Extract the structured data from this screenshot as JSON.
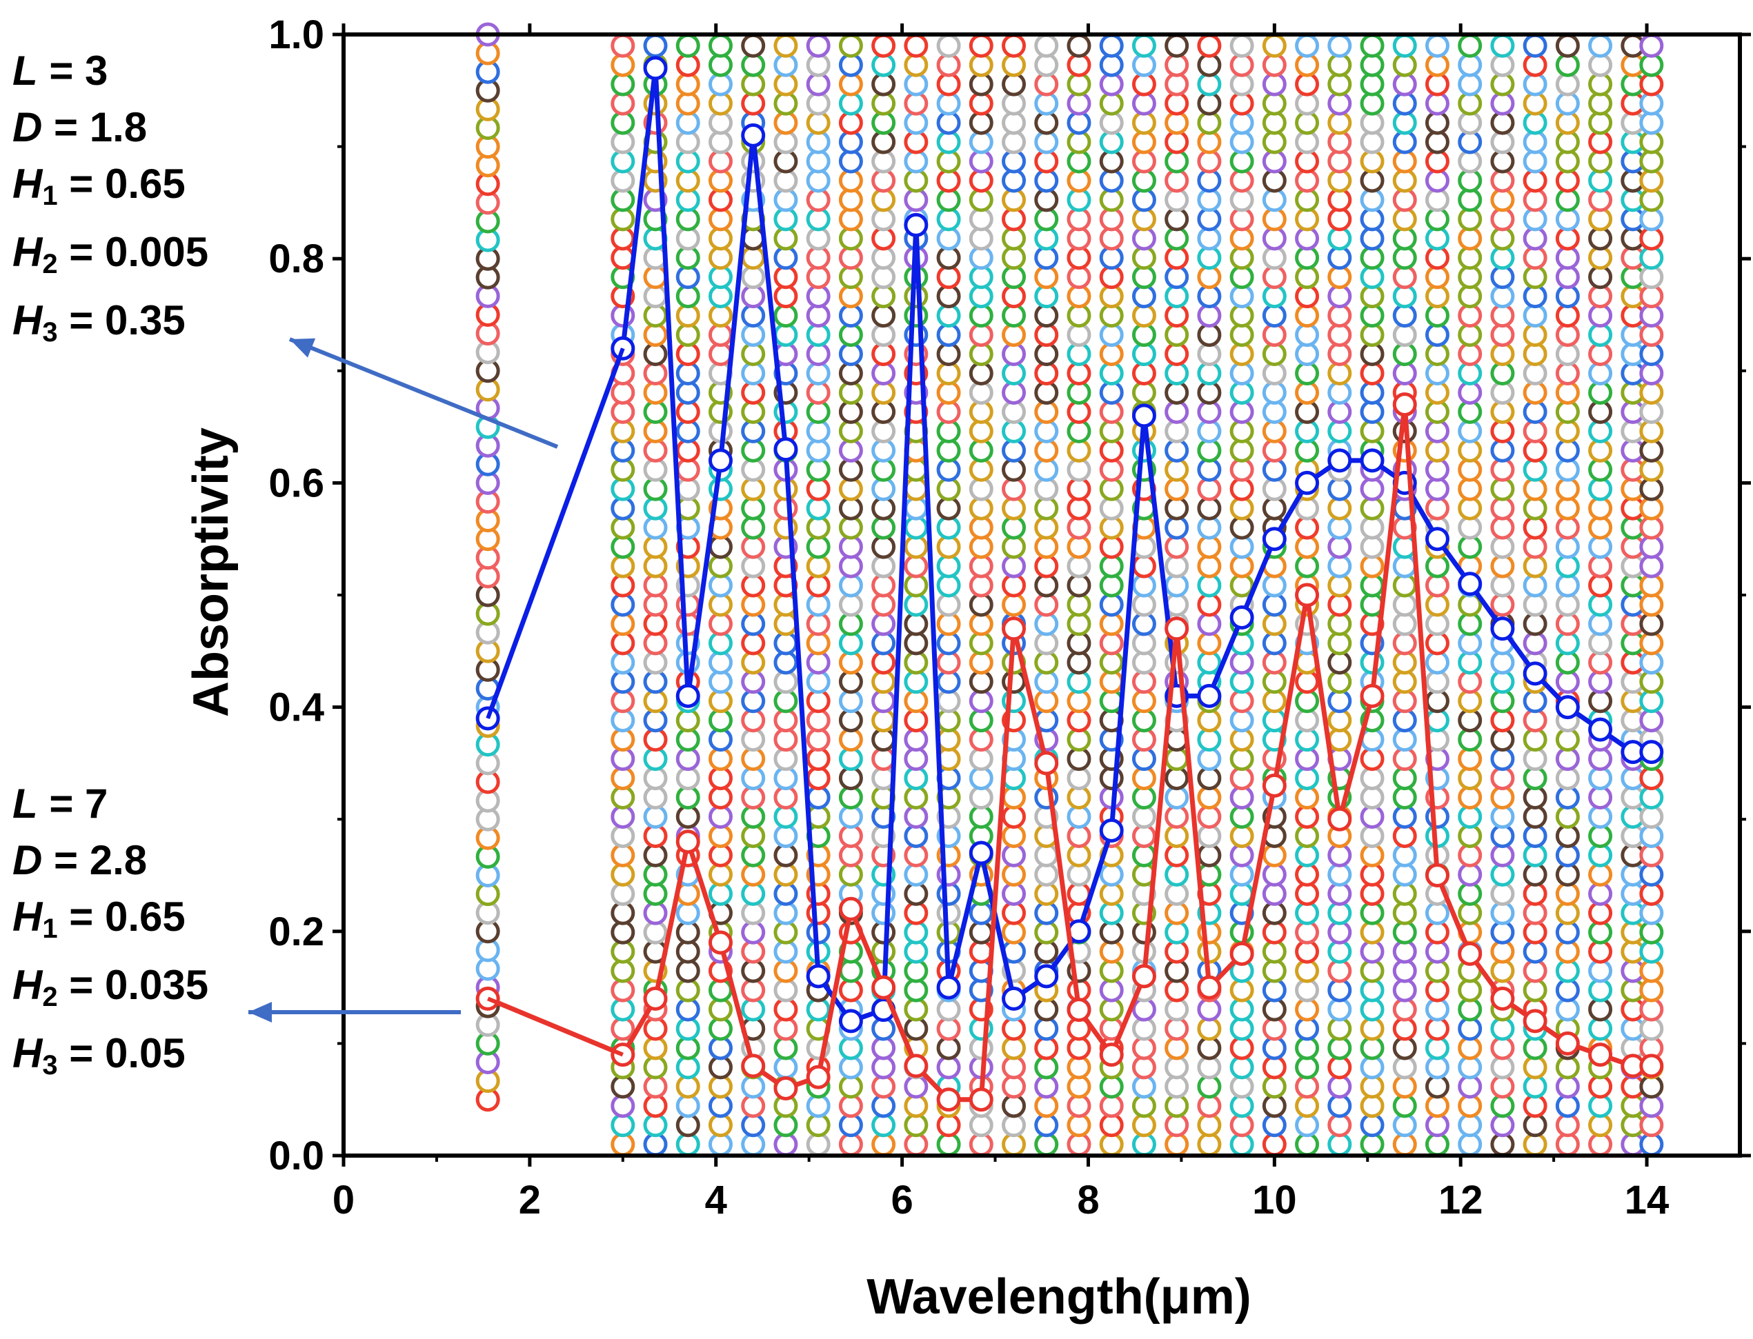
{
  "chart_data": {
    "type": "scatter",
    "title": "",
    "xlabel": "Wavelength(μm)",
    "ylabel": "Absorptivity",
    "xlim": [
      0,
      15
    ],
    "ylim": [
      0,
      1
    ],
    "xticks": [
      0,
      2,
      4,
      6,
      8,
      10,
      12,
      14
    ],
    "xtick_labels": [
      "0",
      "2",
      "4",
      "6",
      "8",
      "10",
      "12",
      "14"
    ],
    "yticks": [
      0.0,
      0.2,
      0.4,
      0.6,
      0.8,
      1.0
    ],
    "ytick_labels": [
      "0.0",
      "0.2",
      "0.4",
      "0.6",
      "0.8",
      "1.0"
    ],
    "background_scatter": {
      "description_x_columns": [
        1.55,
        3.0,
        3.35,
        3.7,
        4.05,
        4.4,
        4.75,
        5.1,
        5.45,
        5.8,
        6.15,
        6.5,
        6.85,
        7.2,
        7.55,
        7.9,
        8.25,
        8.6,
        8.95,
        9.3,
        9.65,
        10.0,
        10.35,
        10.7,
        11.05,
        11.4,
        11.75,
        12.1,
        12.45,
        12.8,
        13.15,
        13.5,
        13.85,
        14.05
      ],
      "first_column_y_range": [
        0.05,
        1.0
      ],
      "other_columns_y_range": [
        0.01,
        0.99
      ],
      "marker_colors": [
        "#ef3b2c",
        "#2f6fdf",
        "#30b040",
        "#9a64d8",
        "#f08a24",
        "#22c4c4",
        "#5a3f30",
        "#8aa820",
        "#b8b8b8",
        "#6ab4f0",
        "#f06060",
        "#d4a020"
      ]
    },
    "series": [
      {
        "name": "L = 3, D = 1.8, H1 = 0.65, H2 = 0.005, H3 = 0.35",
        "color": "#0a1ee6",
        "x": [
          1.55,
          3.0,
          3.35,
          3.7,
          4.05,
          4.4,
          4.75,
          5.1,
          5.45,
          5.8,
          6.15,
          6.5,
          6.85,
          7.2,
          7.55,
          7.9,
          8.25,
          8.6,
          8.95,
          9.3,
          9.65,
          10.0,
          10.35,
          10.7,
          11.05,
          11.4,
          11.75,
          12.1,
          12.45,
          12.8,
          13.15,
          13.5,
          13.85,
          14.05
        ],
        "y": [
          0.39,
          0.72,
          0.97,
          0.41,
          0.62,
          0.91,
          0.63,
          0.16,
          0.12,
          0.13,
          0.83,
          0.15,
          0.27,
          0.14,
          0.16,
          0.2,
          0.29,
          0.66,
          0.41,
          0.41,
          0.48,
          0.55,
          0.6,
          0.62,
          0.62,
          0.6,
          0.55,
          0.51,
          0.47,
          0.43,
          0.4,
          0.38,
          0.36,
          0.36
        ]
      },
      {
        "name": "L = 7, D = 2.8, H1 = 0.65, H2 = 0.035, H3 = 0.05",
        "color": "#e8342c",
        "x": [
          1.55,
          3.0,
          3.35,
          3.7,
          4.05,
          4.4,
          4.75,
          5.1,
          5.45,
          5.8,
          6.15,
          6.5,
          6.85,
          7.2,
          7.55,
          7.9,
          8.25,
          8.6,
          8.95,
          9.3,
          9.65,
          10.0,
          10.35,
          10.7,
          11.05,
          11.4,
          11.75,
          12.1,
          12.45,
          12.8,
          13.15,
          13.5,
          13.85,
          14.05
        ],
        "y": [
          0.14,
          0.09,
          0.14,
          0.28,
          0.19,
          0.08,
          0.06,
          0.07,
          0.22,
          0.15,
          0.08,
          0.05,
          0.05,
          0.47,
          0.35,
          0.13,
          0.09,
          0.16,
          0.47,
          0.15,
          0.18,
          0.33,
          0.5,
          0.3,
          0.41,
          0.67,
          0.25,
          0.18,
          0.14,
          0.12,
          0.1,
          0.09,
          0.08,
          0.08
        ]
      }
    ],
    "annotations": [
      {
        "target_series": 0,
        "lines": [
          {
            "name": "L",
            "sub": "",
            "value": " = 3"
          },
          {
            "name": "D",
            "sub": "",
            "value": " = 1.8"
          },
          {
            "name": "H",
            "sub": "1",
            "value": " = 0.65"
          },
          {
            "name": "H",
            "sub": "2",
            "value": " = 0.005"
          },
          {
            "name": "H",
            "sub": "3",
            "value": " = 0.35"
          }
        ]
      },
      {
        "target_series": 1,
        "lines": [
          {
            "name": "L",
            "sub": "",
            "value": " = 7"
          },
          {
            "name": "D",
            "sub": "",
            "value": " = 2.8"
          },
          {
            "name": "H",
            "sub": "1",
            "value": " = 0.65"
          },
          {
            "name": "H",
            "sub": "2",
            "value": " = 0.035"
          },
          {
            "name": "H",
            "sub": "3",
            "value": " = 0.05"
          }
        ]
      }
    ],
    "arrow_color": "#3f6cc4"
  }
}
